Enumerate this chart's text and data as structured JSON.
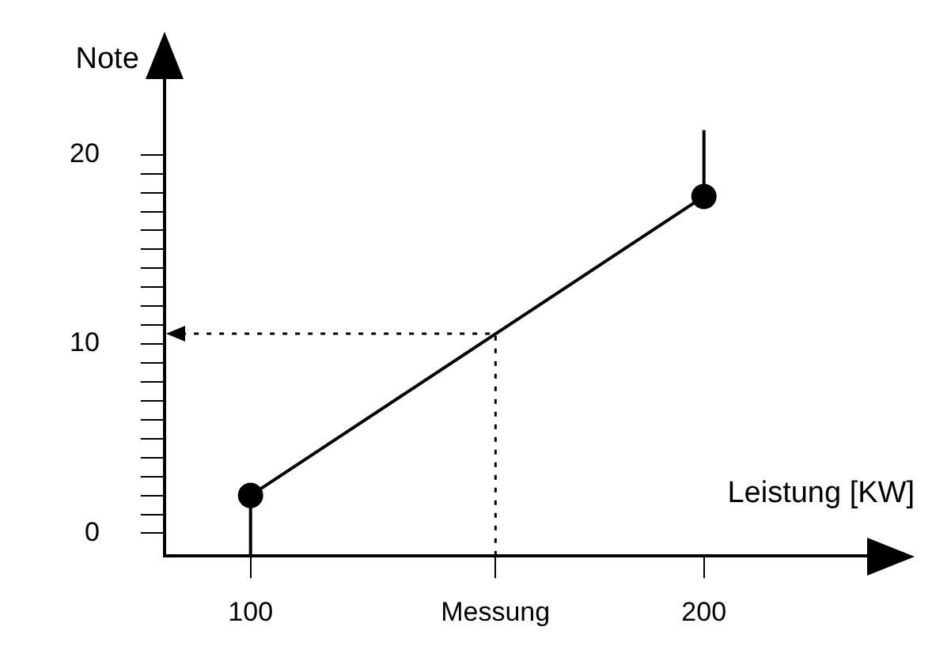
{
  "chart_data": {
    "type": "line",
    "xlabel": "Leistung [KW]",
    "ylabel": "Note",
    "series": [
      {
        "color": "#000000",
        "x": [
          100,
          200
        ],
        "values": [
          2,
          17.8
        ],
        "errors": [
          [
            -1.2,
            2
          ],
          [
            17.8,
            21.3
          ]
        ],
        "marker": "circle",
        "line_style": "solid"
      }
    ],
    "xlim": [
      81,
      236
    ],
    "xticks": [
      100,
      {
        "value": 154,
        "label": "Messung"
      },
      200
    ],
    "ylim": [
      -1.2,
      24
    ],
    "yticks": [
      0,
      {
        "value": 1,
        "label": null
      },
      {
        "value": 2,
        "label": null
      },
      {
        "value": 3,
        "label": null
      },
      {
        "value": 4,
        "label": null
      },
      {
        "value": 5,
        "label": null
      },
      {
        "value": 6,
        "label": null
      },
      {
        "value": 7,
        "label": null
      },
      {
        "value": 8,
        "label": null
      },
      {
        "value": 9,
        "label": null
      },
      10,
      {
        "value": 11,
        "label": null
      },
      {
        "value": 12,
        "label": null
      },
      {
        "value": 13,
        "label": null
      },
      {
        "value": 14,
        "label": null
      },
      {
        "value": 15,
        "label": null
      },
      {
        "value": 16,
        "label": null
      },
      {
        "value": 17,
        "label": null
      },
      {
        "value": 18,
        "label": null
      },
      {
        "value": 19,
        "label": null
      },
      20
    ],
    "grid": false,
    "legend": false
  }
}
